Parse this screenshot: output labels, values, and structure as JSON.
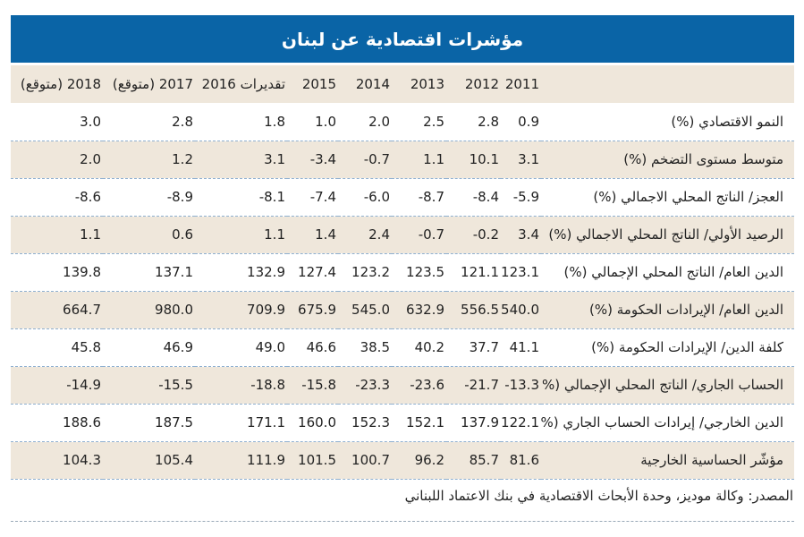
{
  "title": "مؤشرات اقتصادية عن لبنان",
  "columns": [
    "2018 (متوقع)",
    "2017 (متوقع)",
    "تقديرات 2016",
    "2015",
    "2014",
    "2013",
    "2012",
    "2011"
  ],
  "rows": [
    {
      "label": "النمو الاقتصادي (%)",
      "values": [
        "3.0",
        "2.8",
        "1.8",
        "1.0",
        "2.0",
        "2.5",
        "2.8",
        "0.9"
      ]
    },
    {
      "label": "متوسط مستوى التضخم (%)",
      "values": [
        "2.0",
        "1.2",
        "3.1",
        "-3.4",
        "-0.7",
        "1.1",
        "10.1",
        "3.1"
      ]
    },
    {
      "label": "العجز/ الناتج المحلي الاجمالي (%)",
      "values": [
        "-8.6",
        "-8.9",
        "-8.1",
        "-7.4",
        "-6.0",
        "-8.7",
        "-8.4",
        "-5.9"
      ]
    },
    {
      "label": "الرصيد الأولي/ الناتج المحلي الاجمالي (%)",
      "values": [
        "1.1",
        "0.6",
        "1.1",
        "1.4",
        "2.4",
        "-0.7",
        "-0.2",
        "3.4"
      ]
    },
    {
      "label": "الدين العام/ الناتج المحلي الإجمالي (%)",
      "values": [
        "139.8",
        "137.1",
        "132.9",
        "127.4",
        "123.2",
        "123.5",
        "121.1",
        "123.1"
      ]
    },
    {
      "label": "الدين العام/ الإيرادات الحكومة (%)",
      "values": [
        "664.7",
        "980.0",
        "709.9",
        "675.9",
        "545.0",
        "632.9",
        "556.5",
        "540.0"
      ]
    },
    {
      "label": "كلفة الدين/ الإيرادات الحكومة (%)",
      "values": [
        "45.8",
        "46.9",
        "49.0",
        "46.6",
        "38.5",
        "40.2",
        "37.7",
        "41.1"
      ]
    },
    {
      "label": "الحساب الجاري/ الناتج المحلي الإجمالي (%)",
      "values": [
        "-14.9",
        "-15.5",
        "-18.8",
        "-15.8",
        "-23.3",
        "-23.6",
        "-21.7",
        "-13.3"
      ]
    },
    {
      "label": "الدين الخارجي/ إيرادات الحساب الجاري (%)",
      "values": [
        "188.6",
        "187.5",
        "171.1",
        "160.0",
        "152.3",
        "152.1",
        "137.9",
        "122.1"
      ]
    },
    {
      "label": "مؤشّر الحساسية الخارجية",
      "values": [
        "104.3",
        "105.4",
        "111.9",
        "101.5",
        "100.7",
        "96.2",
        "85.7",
        "81.6"
      ]
    }
  ],
  "source": "المصدر: وكالة موديز، وحدة الأبحاث الاقتصادية في بنك الاعتماد اللبناني",
  "colors": {
    "title_bg": "#0a64a6",
    "band_bg": "#efe7db",
    "divider": "#8fb0d0"
  }
}
